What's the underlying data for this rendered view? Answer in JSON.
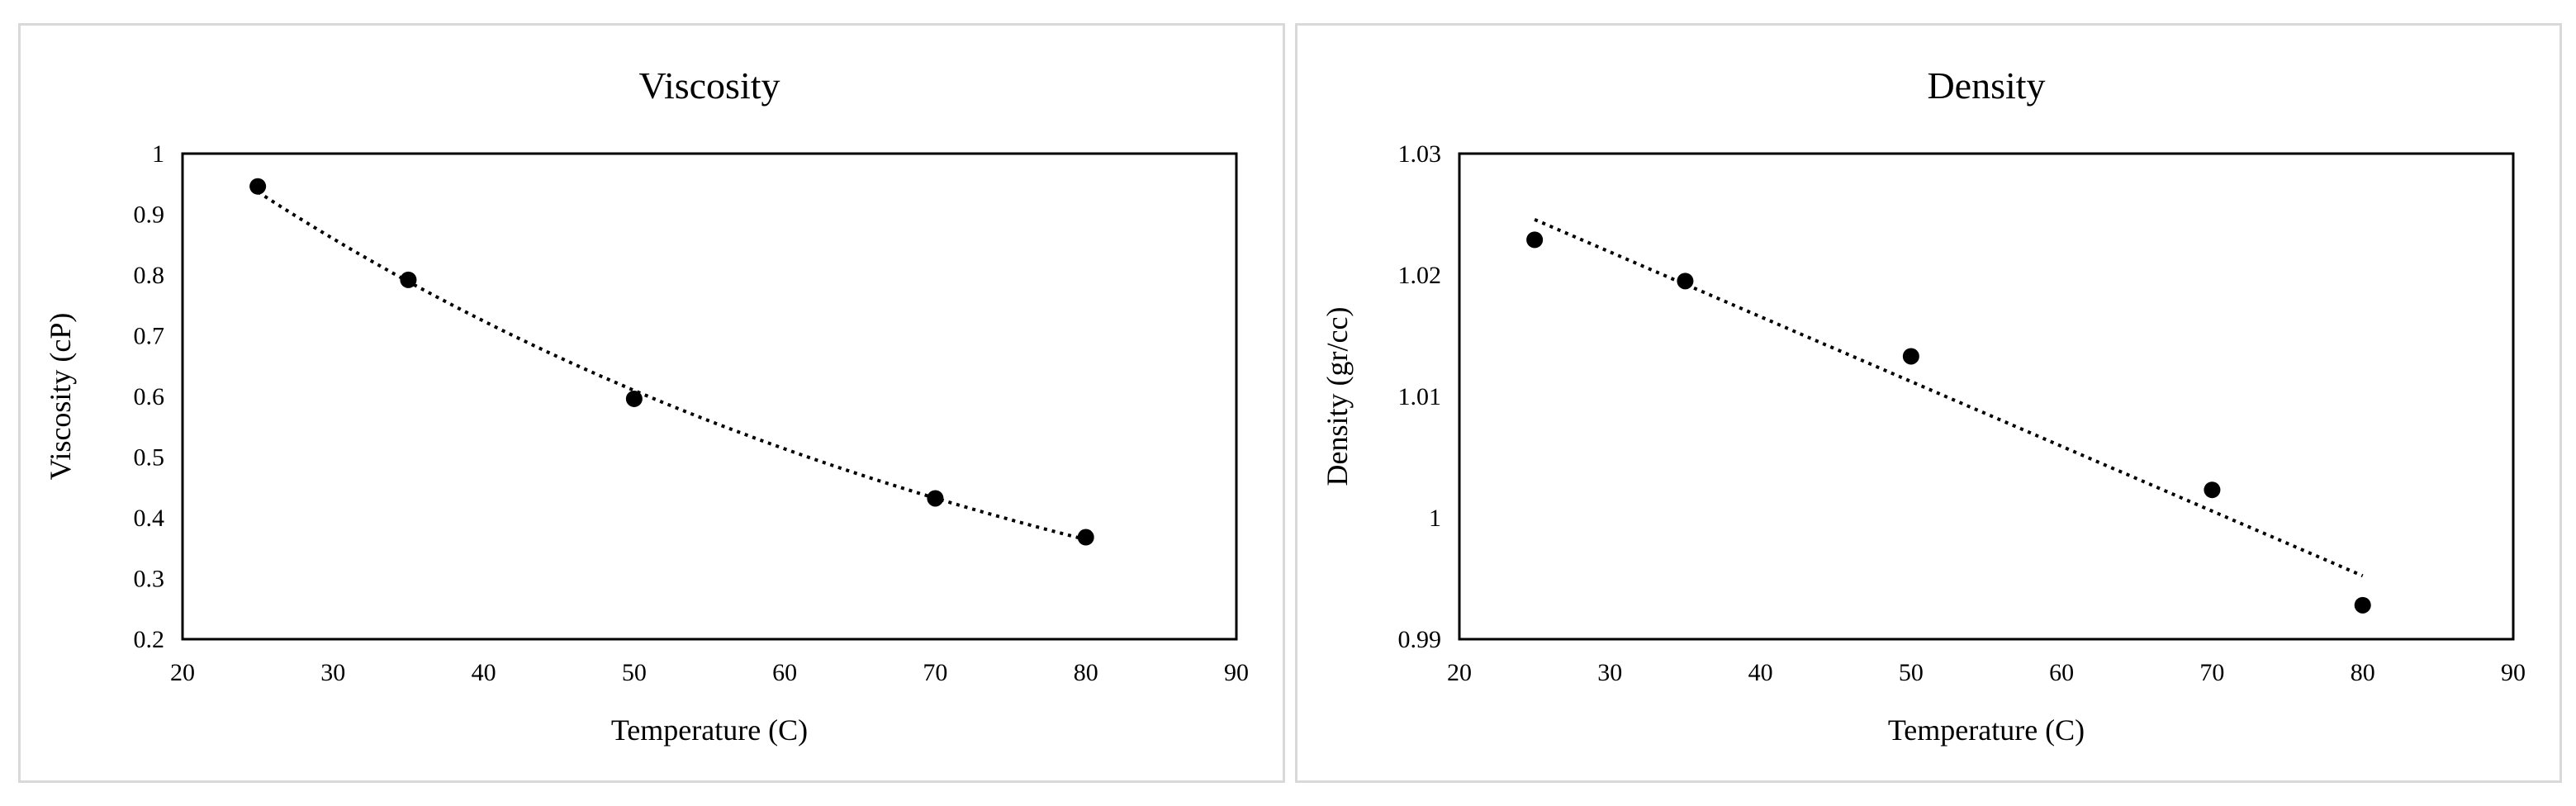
{
  "chart_data": [
    {
      "type": "scatter",
      "title": "Viscosity",
      "xlabel": "Temperature (C)",
      "ylabel": "Viscosity (cP)",
      "xlim": [
        20,
        90
      ],
      "ylim": [
        0.2,
        1
      ],
      "xticks": [
        "20",
        "30",
        "40",
        "50",
        "60",
        "70",
        "80",
        "90"
      ],
      "yticks": [
        "0.2",
        "0.3",
        "0.4",
        "0.5",
        "0.6",
        "0.7",
        "0.8",
        "0.9",
        "1"
      ],
      "x": [
        25,
        35,
        50,
        70,
        80
      ],
      "y": [
        0.946,
        0.792,
        0.596,
        0.432,
        0.368
      ],
      "trendline": {
        "style": "dotted",
        "fit": "exponential"
      },
      "grid": false,
      "marker_color": "#000000"
    },
    {
      "type": "scatter",
      "title": "Density",
      "xlabel": "Temperature (C)",
      "ylabel": "Density (gr/cc)",
      "xlim": [
        20,
        90
      ],
      "ylim": [
        0.99,
        1.03
      ],
      "xticks": [
        "20",
        "30",
        "40",
        "50",
        "60",
        "70",
        "80",
        "90"
      ],
      "yticks": [
        "0.99",
        "1",
        "1.01",
        "1.02",
        "1.03"
      ],
      "x": [
        25,
        35,
        50,
        70,
        80
      ],
      "y": [
        1.0229,
        1.0195,
        1.0133,
        1.0023,
        0.9928
      ],
      "trendline": {
        "style": "dotted",
        "fit": "linear"
      },
      "grid": false,
      "marker_color": "#000000"
    }
  ]
}
